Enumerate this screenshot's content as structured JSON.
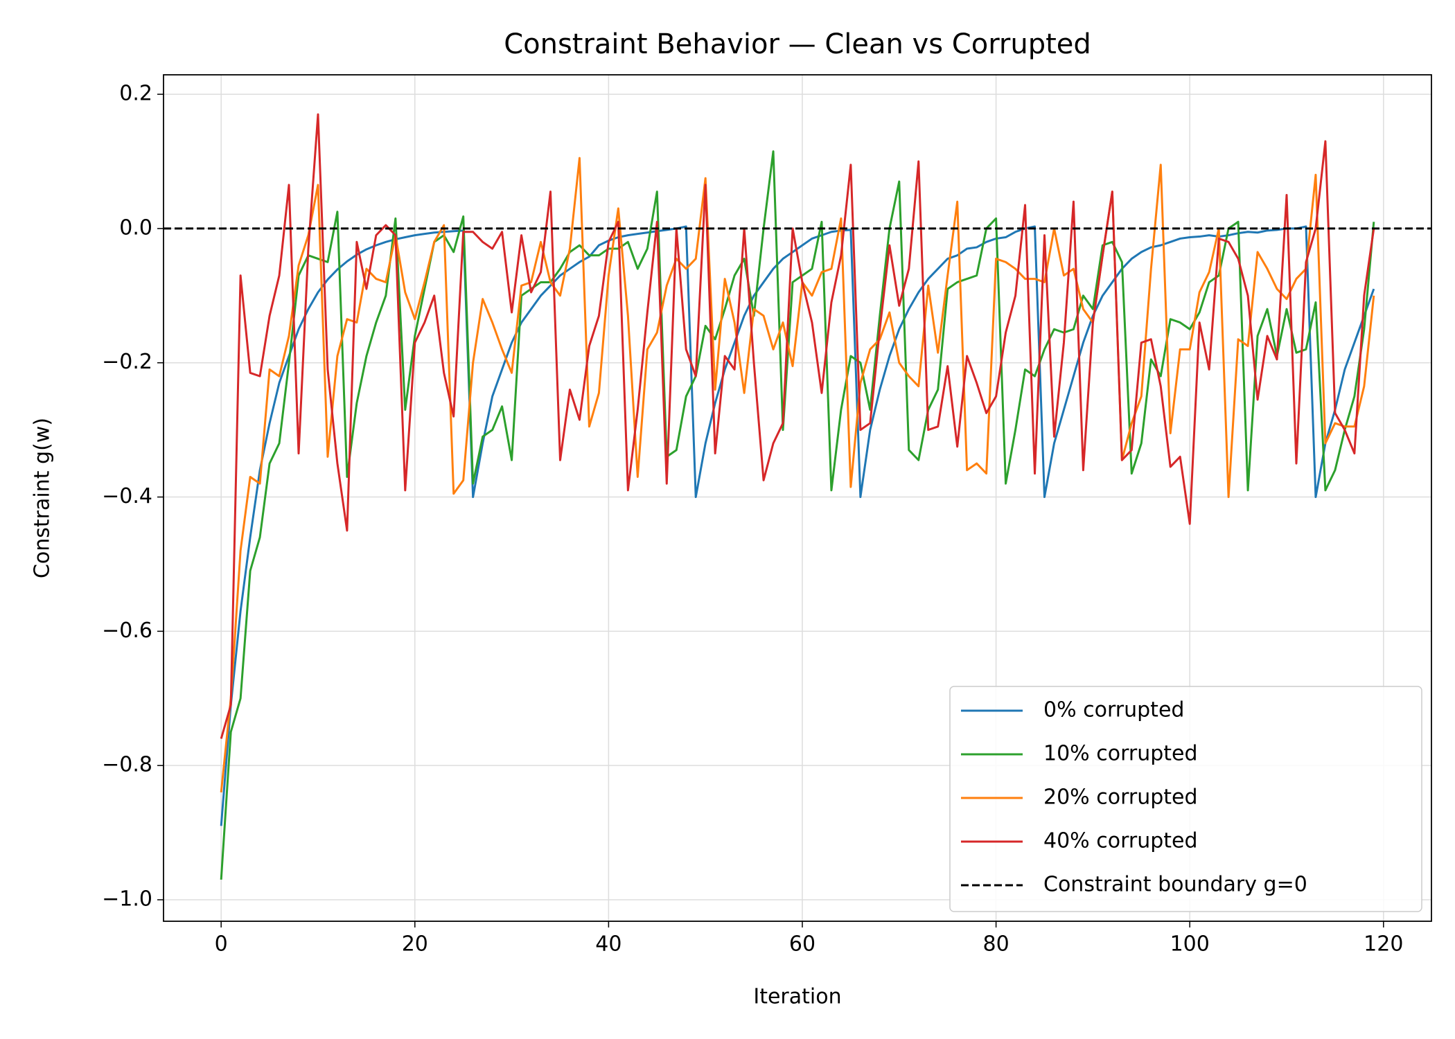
{
  "chart_data": {
    "type": "line",
    "title": "Constraint Behavior — Clean vs Corrupted",
    "x_label": "Iteration",
    "y_label": "Constraint g(w)",
    "x": [
      0,
      1,
      2,
      3,
      4,
      5,
      6,
      7,
      8,
      9,
      10,
      11,
      12,
      13,
      14,
      15,
      16,
      17,
      18,
      19,
      20,
      21,
      22,
      23,
      24,
      25,
      26,
      27,
      28,
      29,
      30,
      31,
      32,
      33,
      34,
      35,
      36,
      37,
      38,
      39,
      40,
      41,
      42,
      43,
      44,
      45,
      46,
      47,
      48,
      49,
      50,
      51,
      52,
      53,
      54,
      55,
      56,
      57,
      58,
      59,
      60,
      61,
      62,
      63,
      64,
      65,
      66,
      67,
      68,
      69,
      70,
      71,
      72,
      73,
      74,
      75,
      76,
      77,
      78,
      79,
      80,
      81,
      82,
      83,
      84,
      85,
      86,
      87,
      88,
      89,
      90,
      91,
      92,
      93,
      94,
      95,
      96,
      97,
      98,
      99,
      100,
      101,
      102,
      103,
      104,
      105,
      106,
      107,
      108,
      109,
      110,
      111,
      112,
      113,
      114,
      115,
      116,
      117,
      118,
      119
    ],
    "series": [
      {
        "name": "0% corrupted",
        "color": "#1f77b4",
        "values": [
          -0.89,
          -0.71,
          -0.57,
          -0.46,
          -0.36,
          -0.29,
          -0.23,
          -0.19,
          -0.15,
          -0.12,
          -0.095,
          -0.076,
          -0.061,
          -0.049,
          -0.039,
          -0.031,
          -0.025,
          -0.02,
          -0.016,
          -0.013,
          -0.01,
          -0.008,
          -0.006,
          -0.005,
          -0.004,
          -0.003,
          -0.4,
          -0.32,
          -0.25,
          -0.21,
          -0.17,
          -0.14,
          -0.12,
          -0.1,
          -0.085,
          -0.07,
          -0.06,
          -0.05,
          -0.042,
          -0.025,
          -0.018,
          -0.013,
          -0.01,
          -0.008,
          -0.006,
          -0.004,
          -0.002,
          0.0,
          0.003,
          -0.4,
          -0.32,
          -0.26,
          -0.21,
          -0.17,
          -0.13,
          -0.1,
          -0.08,
          -0.06,
          -0.045,
          -0.035,
          -0.025,
          -0.015,
          -0.01,
          -0.005,
          -0.003,
          -0.002,
          -0.4,
          -0.3,
          -0.24,
          -0.19,
          -0.15,
          -0.12,
          -0.095,
          -0.075,
          -0.06,
          -0.045,
          -0.04,
          -0.03,
          -0.028,
          -0.02,
          -0.015,
          -0.013,
          -0.005,
          0.0,
          0.003,
          -0.4,
          -0.32,
          -0.27,
          -0.22,
          -0.17,
          -0.13,
          -0.1,
          -0.08,
          -0.06,
          -0.045,
          -0.035,
          -0.028,
          -0.025,
          -0.02,
          -0.015,
          -0.013,
          -0.012,
          -0.01,
          -0.012,
          -0.01,
          -0.007,
          -0.005,
          -0.006,
          -0.003,
          -0.002,
          0.0,
          0.0,
          0.003,
          -0.4,
          -0.32,
          -0.27,
          -0.21,
          -0.17,
          -0.13,
          -0.09
        ]
      },
      {
        "name": "10% corrupted",
        "color": "#2ca02c",
        "values": [
          -0.97,
          -0.75,
          -0.7,
          -0.51,
          -0.46,
          -0.35,
          -0.32,
          -0.2,
          -0.07,
          -0.04,
          -0.045,
          -0.05,
          0.025,
          -0.37,
          -0.26,
          -0.19,
          -0.14,
          -0.1,
          0.015,
          -0.27,
          -0.16,
          -0.09,
          -0.02,
          -0.01,
          -0.035,
          0.018,
          -0.38,
          -0.31,
          -0.3,
          -0.265,
          -0.345,
          -0.1,
          -0.09,
          -0.08,
          -0.08,
          -0.06,
          -0.035,
          -0.025,
          -0.04,
          -0.04,
          -0.03,
          -0.03,
          -0.02,
          -0.06,
          -0.03,
          0.055,
          -0.34,
          -0.33,
          -0.25,
          -0.22,
          -0.145,
          -0.165,
          -0.12,
          -0.07,
          -0.045,
          -0.13,
          0.0,
          0.115,
          -0.3,
          -0.08,
          -0.07,
          -0.06,
          0.01,
          -0.39,
          -0.27,
          -0.19,
          -0.2,
          -0.27,
          -0.13,
          0.0,
          0.07,
          -0.33,
          -0.345,
          -0.27,
          -0.24,
          -0.09,
          -0.08,
          -0.075,
          -0.07,
          0.0,
          0.015,
          -0.38,
          -0.3,
          -0.21,
          -0.22,
          -0.18,
          -0.15,
          -0.155,
          -0.15,
          -0.1,
          -0.12,
          -0.025,
          -0.02,
          -0.05,
          -0.365,
          -0.32,
          -0.195,
          -0.22,
          -0.135,
          -0.14,
          -0.15,
          -0.125,
          -0.08,
          -0.07,
          0.0,
          0.01,
          -0.39,
          -0.16,
          -0.12,
          -0.19,
          -0.12,
          -0.185,
          -0.18,
          -0.11,
          -0.39,
          -0.36,
          -0.3,
          -0.25,
          -0.15,
          0.01
        ]
      },
      {
        "name": "20% corrupted",
        "color": "#ff7f0e",
        "values": [
          -0.84,
          -0.7,
          -0.48,
          -0.37,
          -0.38,
          -0.21,
          -0.22,
          -0.16,
          -0.055,
          -0.01,
          0.065,
          -0.34,
          -0.19,
          -0.135,
          -0.14,
          -0.06,
          -0.075,
          -0.08,
          -0.01,
          -0.095,
          -0.135,
          -0.08,
          -0.02,
          0.005,
          -0.395,
          -0.375,
          -0.2,
          -0.105,
          -0.14,
          -0.18,
          -0.215,
          -0.085,
          -0.08,
          -0.02,
          -0.08,
          -0.1,
          -0.03,
          0.105,
          -0.295,
          -0.245,
          -0.07,
          0.03,
          -0.13,
          -0.37,
          -0.18,
          -0.155,
          -0.085,
          -0.045,
          -0.06,
          -0.045,
          0.075,
          -0.24,
          -0.075,
          -0.14,
          -0.245,
          -0.12,
          -0.13,
          -0.18,
          -0.14,
          -0.205,
          -0.08,
          -0.1,
          -0.065,
          -0.06,
          0.015,
          -0.385,
          -0.23,
          -0.18,
          -0.165,
          -0.125,
          -0.2,
          -0.22,
          -0.235,
          -0.085,
          -0.185,
          -0.07,
          0.04,
          -0.36,
          -0.35,
          -0.365,
          -0.045,
          -0.05,
          -0.06,
          -0.075,
          -0.075,
          -0.08,
          0.0,
          -0.07,
          -0.06,
          -0.12,
          -0.14,
          -0.04,
          0.055,
          -0.345,
          -0.29,
          -0.25,
          -0.06,
          0.095,
          -0.305,
          -0.18,
          -0.18,
          -0.095,
          -0.065,
          0.0,
          -0.4,
          -0.165,
          -0.175,
          -0.035,
          -0.06,
          -0.09,
          -0.105,
          -0.075,
          -0.06,
          0.08,
          -0.32,
          -0.29,
          -0.295,
          -0.295,
          -0.235,
          -0.1
        ]
      },
      {
        "name": "40% corrupted",
        "color": "#d62728",
        "values": [
          -0.76,
          -0.71,
          -0.07,
          -0.215,
          -0.22,
          -0.13,
          -0.07,
          0.065,
          -0.335,
          -0.03,
          0.17,
          -0.21,
          -0.35,
          -0.45,
          -0.02,
          -0.09,
          -0.01,
          0.005,
          -0.01,
          -0.39,
          -0.17,
          -0.14,
          -0.1,
          -0.215,
          -0.28,
          -0.005,
          -0.005,
          -0.02,
          -0.03,
          -0.005,
          -0.125,
          -0.01,
          -0.095,
          -0.065,
          0.055,
          -0.345,
          -0.24,
          -0.285,
          -0.175,
          -0.13,
          -0.02,
          0.01,
          -0.39,
          -0.27,
          -0.125,
          0.01,
          -0.38,
          0.0,
          -0.18,
          -0.22,
          0.065,
          -0.335,
          -0.19,
          -0.21,
          0.0,
          -0.2,
          -0.375,
          -0.32,
          -0.29,
          0.0,
          -0.08,
          -0.14,
          -0.245,
          -0.11,
          -0.04,
          0.095,
          -0.3,
          -0.29,
          -0.15,
          -0.025,
          -0.115,
          -0.06,
          0.1,
          -0.3,
          -0.295,
          -0.205,
          -0.325,
          -0.19,
          -0.23,
          -0.275,
          -0.25,
          -0.155,
          -0.1,
          0.035,
          -0.365,
          -0.01,
          -0.31,
          -0.17,
          0.04,
          -0.36,
          -0.14,
          -0.04,
          0.055,
          -0.345,
          -0.33,
          -0.17,
          -0.165,
          -0.235,
          -0.355,
          -0.34,
          -0.44,
          -0.14,
          -0.21,
          -0.015,
          -0.02,
          -0.045,
          -0.1,
          -0.255,
          -0.16,
          -0.195,
          0.05,
          -0.35,
          -0.05,
          0.0,
          0.13,
          -0.275,
          -0.3,
          -0.335,
          -0.1,
          0.0
        ]
      }
    ],
    "hlines": [
      {
        "name": "Constraint boundary g=0",
        "color": "#000000",
        "y": 0,
        "dash": "dashed"
      }
    ],
    "xlim": [
      -5.95,
      124.95
    ],
    "ylim": [
      -1.032,
      0.229
    ],
    "xticks": [
      0,
      20,
      40,
      60,
      80,
      100,
      120
    ],
    "yticks": [
      {
        "value": -1.0,
        "label": "−1.0"
      },
      {
        "value": -0.8,
        "label": "−0.8"
      },
      {
        "value": -0.6,
        "label": "−0.6"
      },
      {
        "value": -0.4,
        "label": "−0.4"
      },
      {
        "value": -0.2,
        "label": "−0.2"
      },
      {
        "value": 0,
        "label": "0.0"
      },
      0.2
    ],
    "grid": true,
    "legend": "lower right"
  }
}
